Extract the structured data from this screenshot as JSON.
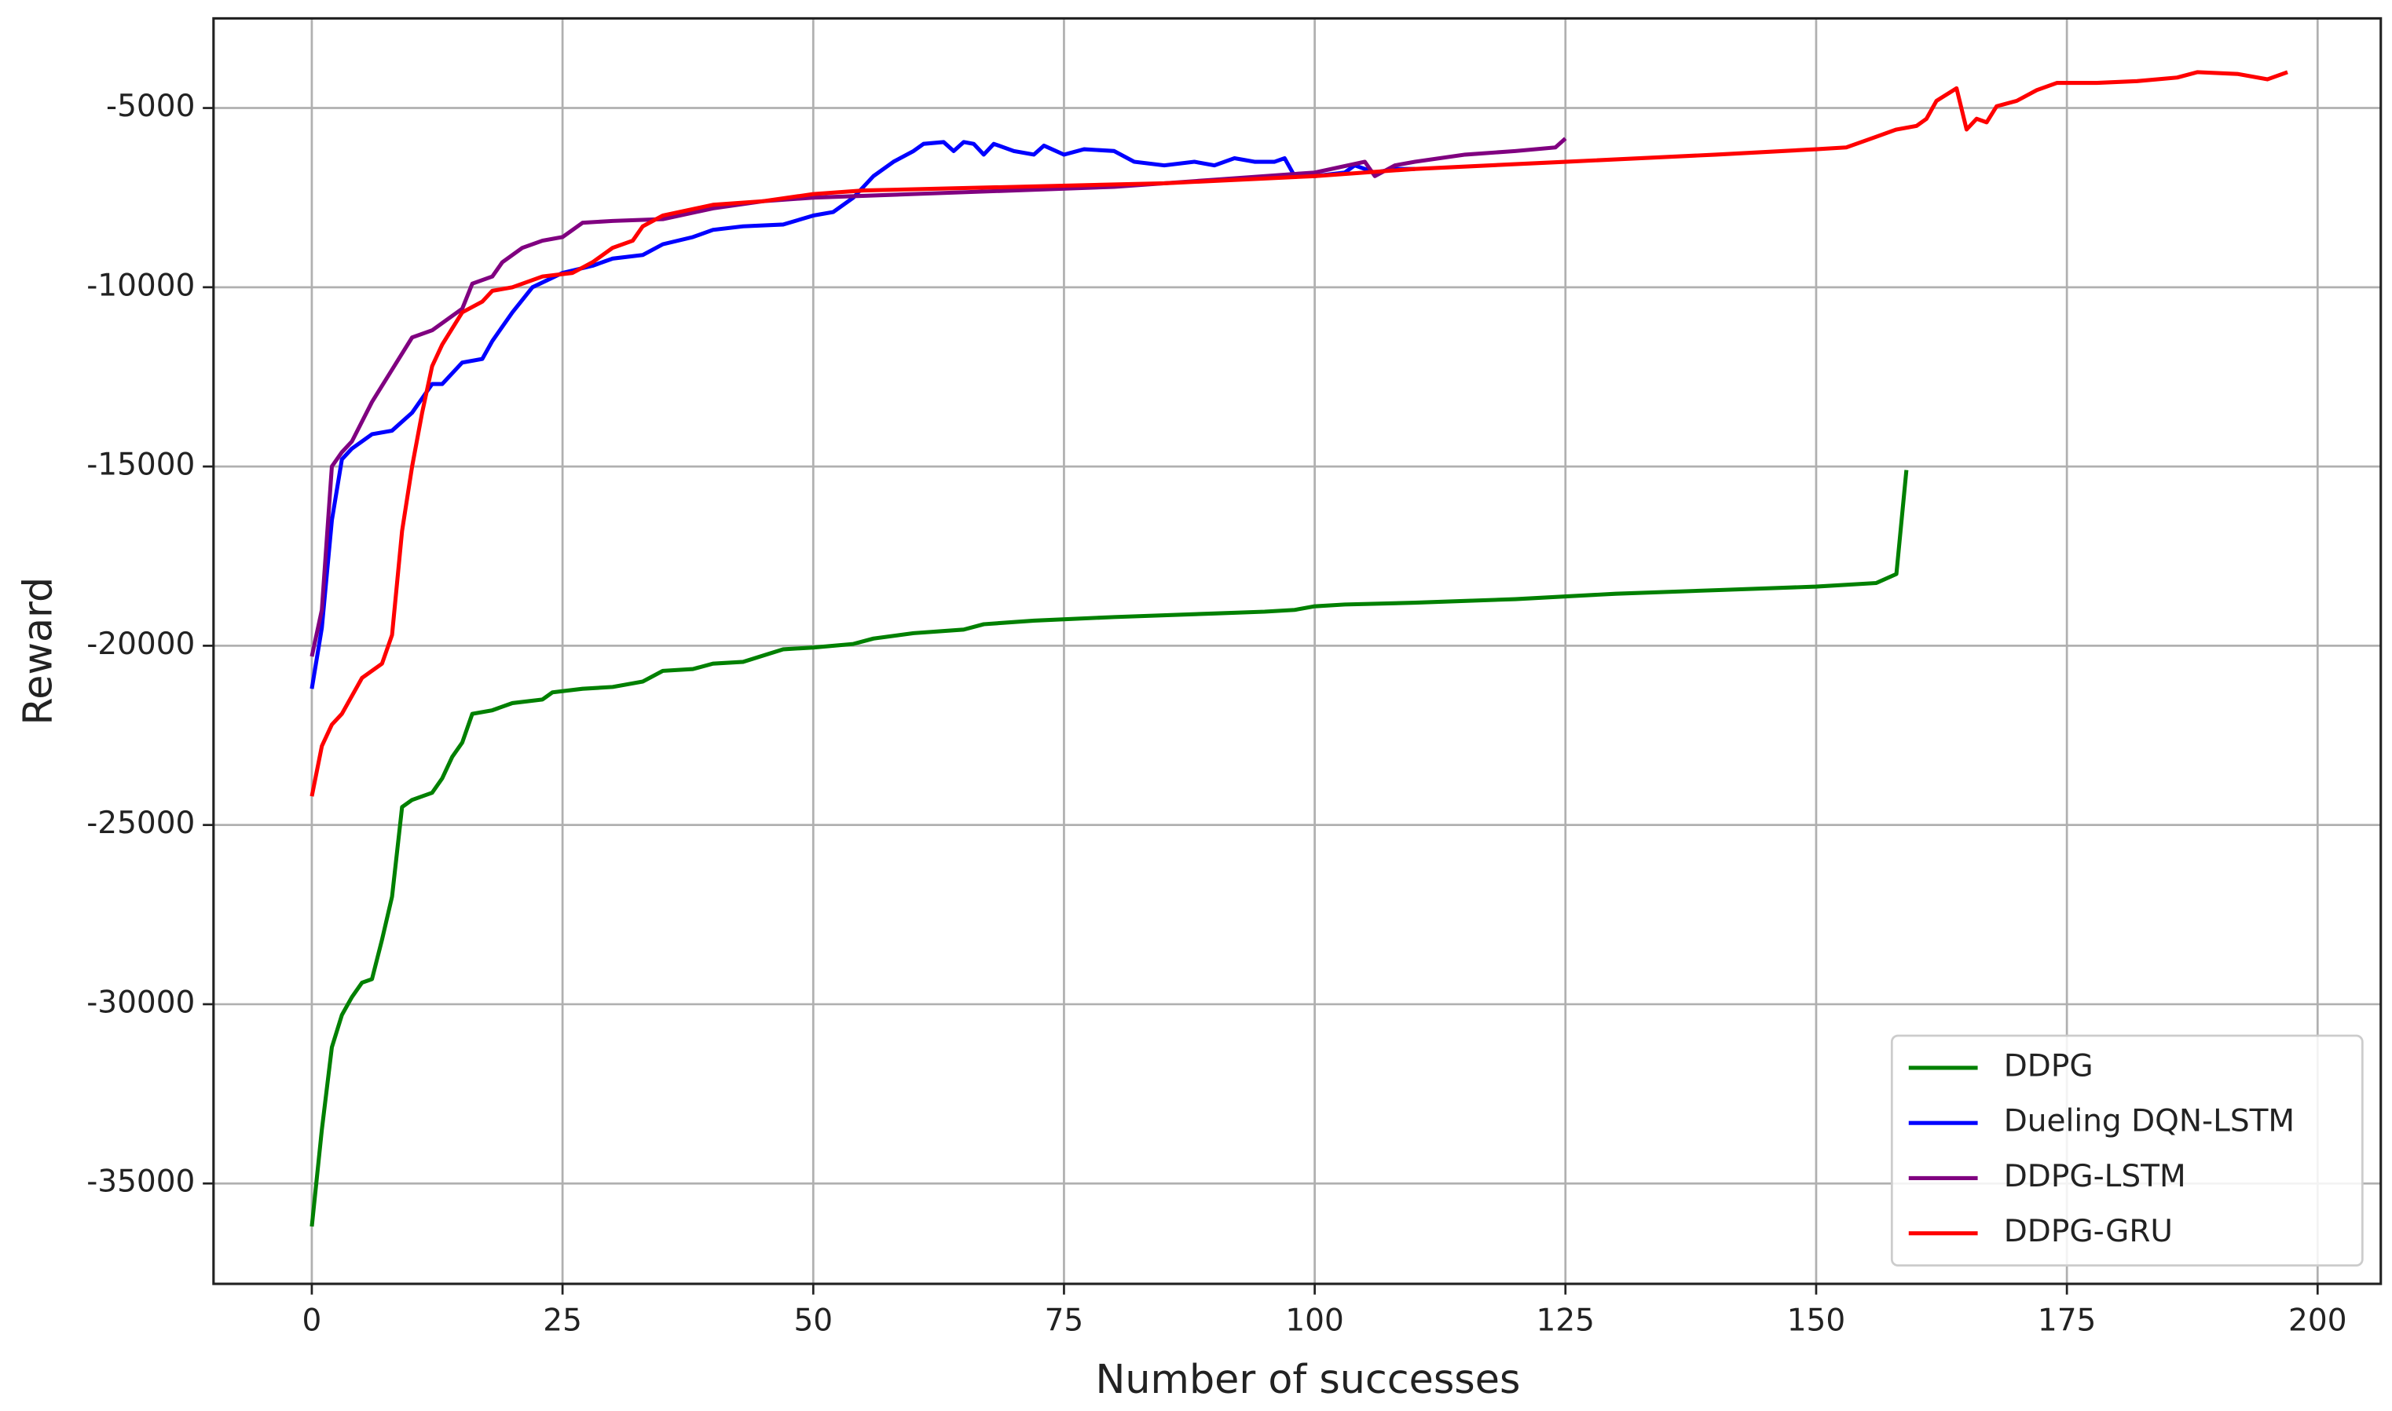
{
  "chart_data": {
    "type": "line",
    "x_label": "Number of successes",
    "y_label": "Reward",
    "xlim": [
      -9.8,
      206.3
    ],
    "ylim": [
      -37800,
      -2500
    ],
    "xticks": [
      0,
      25,
      50,
      75,
      100,
      125,
      150,
      175,
      200
    ],
    "yticks": [
      -35000,
      -30000,
      -25000,
      -20000,
      -15000,
      -10000,
      -5000
    ],
    "grid": true,
    "legend": "lower right",
    "series": [
      {
        "name": "DDPG",
        "color": "#008000",
        "x": [
          0,
          1,
          2,
          3,
          4,
          5,
          6,
          7,
          8,
          9,
          10,
          12,
          13,
          14,
          15,
          16,
          18,
          20,
          23,
          24,
          27,
          30,
          33,
          35,
          38,
          40,
          43,
          47,
          50,
          54,
          56,
          60,
          65,
          67,
          72,
          80,
          90,
          95,
          98,
          100,
          103,
          110,
          120,
          130,
          140,
          150,
          156,
          158,
          159
        ],
        "values": [
          -36200,
          -33500,
          -31200,
          -30300,
          -29800,
          -29400,
          -29300,
          -28200,
          -27000,
          -24500,
          -24300,
          -24100,
          -23700,
          -23100,
          -22700,
          -21900,
          -21800,
          -21600,
          -21500,
          -21300,
          -21200,
          -21150,
          -21000,
          -20700,
          -20650,
          -20500,
          -20450,
          -20100,
          -20050,
          -19950,
          -19800,
          -19650,
          -19550,
          -19400,
          -19300,
          -19200,
          -19100,
          -19050,
          -19000,
          -18900,
          -18850,
          -18800,
          -18700,
          -18550,
          -18450,
          -18350,
          -18250,
          -18000,
          -15100
        ]
      },
      {
        "name": "Dueling DQN-LSTM",
        "color": "#0000ff",
        "x": [
          0,
          1,
          2,
          3,
          4,
          6,
          8,
          10,
          12,
          13,
          15,
          17,
          18,
          20,
          22,
          25,
          28,
          30,
          33,
          35,
          38,
          40,
          43,
          47,
          50,
          52,
          54,
          56,
          58,
          60,
          61,
          63,
          64,
          65,
          66,
          67,
          68,
          70,
          72,
          73,
          75,
          77,
          80,
          82,
          85,
          88,
          90,
          92,
          94,
          96,
          97,
          98,
          100,
          103,
          104,
          106,
          108,
          110
        ],
        "values": [
          -21200,
          -19500,
          -16500,
          -14800,
          -14500,
          -14100,
          -14000,
          -13500,
          -12700,
          -12700,
          -12100,
          -12000,
          -11500,
          -10700,
          -10000,
          -9600,
          -9400,
          -9200,
          -9100,
          -8800,
          -8600,
          -8400,
          -8300,
          -8250,
          -8000,
          -7900,
          -7500,
          -6900,
          -6500,
          -6200,
          -6000,
          -5950,
          -6200,
          -5950,
          -6000,
          -6300,
          -6000,
          -6200,
          -6300,
          -6050,
          -6300,
          -6150,
          -6200,
          -6500,
          -6600,
          -6500,
          -6600,
          -6400,
          -6500,
          -6500,
          -6400,
          -6900,
          -6900,
          -6800,
          -6600,
          -6800,
          -6700,
          -6700
        ]
      },
      {
        "name": "DDPG-LSTM",
        "color": "#800080",
        "x": [
          0,
          1,
          2,
          3,
          4,
          6,
          8,
          10,
          12,
          14,
          15,
          16,
          18,
          19,
          21,
          23,
          25,
          27,
          30,
          35,
          40,
          45,
          50,
          60,
          70,
          80,
          90,
          100,
          105,
          106,
          108,
          110,
          115,
          120,
          124,
          125
        ],
        "values": [
          -20300,
          -19000,
          -15000,
          -14600,
          -14300,
          -13200,
          -12300,
          -11400,
          -11200,
          -10800,
          -10600,
          -9900,
          -9700,
          -9300,
          -8900,
          -8700,
          -8600,
          -8200,
          -8150,
          -8100,
          -7800,
          -7600,
          -7500,
          -7400,
          -7300,
          -7200,
          -7000,
          -6800,
          -6500,
          -6900,
          -6600,
          -6500,
          -6300,
          -6200,
          -6100,
          -5850
        ]
      },
      {
        "name": "DDPG-GRU",
        "color": "#ff0000",
        "x": [
          0,
          1,
          2,
          3,
          5,
          7,
          8,
          9,
          10,
          11,
          12,
          13,
          15,
          17,
          18,
          20,
          23,
          26,
          28,
          30,
          32,
          33,
          35,
          40,
          45,
          50,
          55,
          70,
          85,
          100,
          110,
          125,
          140,
          150,
          153,
          156,
          158,
          160,
          161,
          162,
          164,
          165,
          166,
          167,
          168,
          170,
          172,
          174,
          178,
          182,
          186,
          188,
          192,
          195,
          197
        ],
        "values": [
          -24200,
          -22800,
          -22200,
          -21900,
          -20900,
          -20500,
          -19700,
          -16800,
          -15000,
          -13500,
          -12200,
          -11600,
          -10700,
          -10400,
          -10100,
          -10000,
          -9700,
          -9600,
          -9300,
          -8900,
          -8700,
          -8300,
          -8000,
          -7700,
          -7600,
          -7400,
          -7300,
          -7200,
          -7100,
          -6900,
          -6700,
          -6500,
          -6300,
          -6150,
          -6100,
          -5800,
          -5600,
          -5500,
          -5300,
          -4800,
          -4450,
          -5600,
          -5300,
          -5400,
          -4950,
          -4800,
          -4500,
          -4300,
          -4300,
          -4250,
          -4150,
          -4000,
          -4050,
          -4200,
          -4000
        ]
      }
    ]
  }
}
